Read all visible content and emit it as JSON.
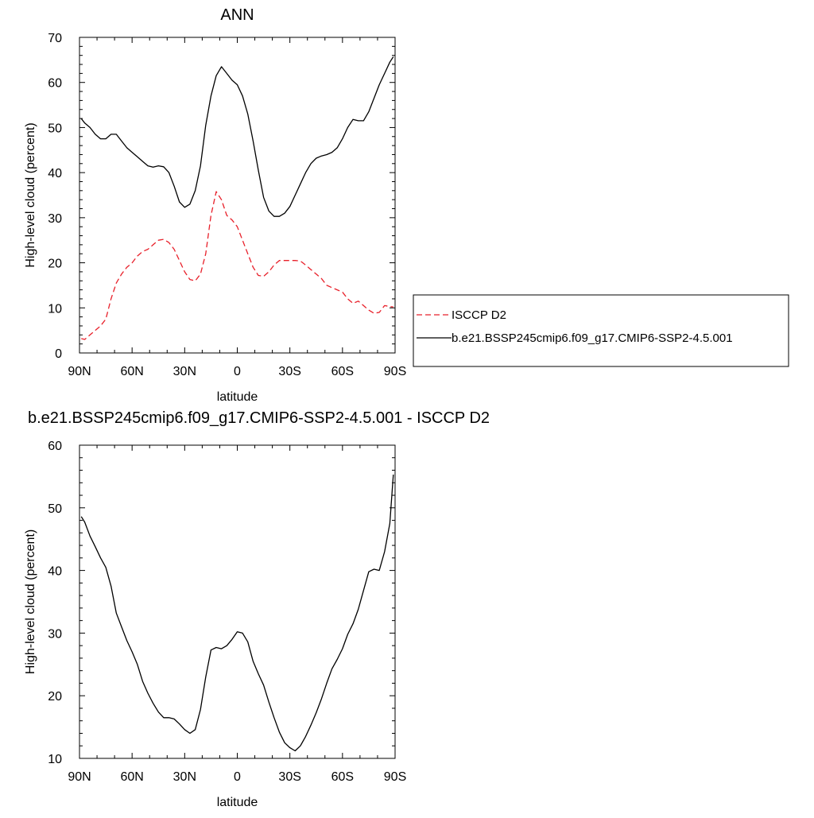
{
  "chart_data": [
    {
      "type": "line",
      "title": "ANN",
      "xlabel": "latitude",
      "ylabel": "High-level cloud (percent)",
      "xlim": [
        90,
        -90
      ],
      "ylim": [
        0,
        70
      ],
      "xticks": [
        90,
        60,
        30,
        0,
        -30,
        -60,
        -90
      ],
      "xtick_labels": [
        "90N",
        "60N",
        "30N",
        "0",
        "30S",
        "60S",
        "90S"
      ],
      "yticks": [
        0,
        10,
        20,
        30,
        40,
        50,
        60,
        70
      ],
      "ytick_labels": [
        "0",
        "10",
        "20",
        "30",
        "40",
        "50",
        "60",
        "70"
      ],
      "grid": false,
      "legend_position": "right",
      "series": [
        {
          "name": "ISCCP D2",
          "color": "#e8202a",
          "dash": "dashed",
          "x": [
            89,
            87,
            84,
            81,
            78,
            75,
            72,
            69,
            66,
            63,
            60,
            57,
            54,
            51,
            48,
            45,
            42,
            39,
            36,
            33,
            30,
            27,
            24,
            21,
            18,
            15,
            12,
            9,
            6,
            3,
            0,
            -3,
            -6,
            -9,
            -12,
            -15,
            -18,
            -21,
            -24,
            -27,
            -30,
            -33,
            -36,
            -39,
            -42,
            -45,
            -48,
            -51,
            -54,
            -57,
            -60,
            -63,
            -66,
            -69,
            -72,
            -75,
            -78,
            -81,
            -84,
            -87,
            -89
          ],
          "y": [
            3.2,
            3.0,
            4.0,
            5.0,
            6.0,
            7.5,
            12.0,
            15.5,
            17.5,
            19.0,
            20.0,
            21.5,
            22.5,
            23.0,
            24.0,
            25.0,
            25.2,
            24.5,
            23.0,
            20.5,
            18.0,
            16.3,
            16.0,
            17.5,
            22.0,
            30.5,
            35.8,
            34.0,
            30.5,
            29.5,
            28.0,
            25.0,
            22.0,
            19.0,
            17.2,
            17.0,
            18.0,
            19.5,
            20.5,
            20.5,
            20.5,
            20.5,
            20.4,
            19.5,
            18.5,
            17.5,
            16.5,
            15.0,
            14.5,
            14.0,
            13.5,
            12.0,
            11.0,
            11.5,
            10.5,
            9.5,
            8.8,
            9.0,
            10.5,
            10.3,
            10.2
          ]
        },
        {
          "name": "b.e21.BSSP245cmip6.f09_g17.CMIP6-SSP2-4.5.001",
          "color": "#000000",
          "dash": "solid",
          "x": [
            89,
            87,
            84,
            81,
            78,
            75,
            72,
            69,
            66,
            63,
            60,
            57,
            54,
            51,
            48,
            45,
            42,
            39,
            36,
            33,
            30,
            27,
            24,
            21,
            18,
            15,
            12,
            9,
            6,
            3,
            0,
            -3,
            -6,
            -9,
            -12,
            -15,
            -18,
            -21,
            -24,
            -27,
            -30,
            -33,
            -36,
            -39,
            -42,
            -45,
            -48,
            -51,
            -54,
            -57,
            -60,
            -63,
            -66,
            -69,
            -72,
            -75,
            -78,
            -81,
            -84,
            -87,
            -89
          ],
          "y": [
            52.0,
            51.0,
            50.0,
            48.5,
            47.5,
            47.5,
            48.5,
            48.5,
            47.0,
            45.5,
            44.5,
            43.5,
            42.5,
            41.5,
            41.2,
            41.5,
            41.3,
            40.0,
            37.0,
            33.5,
            32.3,
            33.0,
            36.0,
            41.5,
            50.5,
            57.0,
            61.5,
            63.5,
            62.0,
            60.5,
            59.5,
            57.0,
            53.0,
            47.0,
            40.5,
            34.5,
            31.5,
            30.3,
            30.3,
            31.0,
            32.5,
            35.0,
            37.5,
            40.0,
            42.0,
            43.2,
            43.7,
            44.0,
            44.5,
            45.5,
            47.5,
            50.0,
            51.8,
            51.5,
            51.5,
            53.5,
            56.5,
            59.5,
            62.0,
            64.5,
            65.7
          ]
        }
      ]
    },
    {
      "type": "line",
      "title": "b.e21.BSSP245cmip6.f09_g17.CMIP6-SSP2-4.5.001 - ISCCP D2",
      "xlabel": "latitude",
      "ylabel": "High-level cloud (percent)",
      "xlim": [
        90,
        -90
      ],
      "ylim": [
        10,
        60
      ],
      "xticks": [
        90,
        60,
        30,
        0,
        -30,
        -60,
        -90
      ],
      "xtick_labels": [
        "90N",
        "60N",
        "30N",
        "0",
        "30S",
        "60S",
        "90S"
      ],
      "yticks": [
        10,
        20,
        30,
        40,
        50,
        60
      ],
      "ytick_labels": [
        "10",
        "20",
        "30",
        "40",
        "50",
        "60"
      ],
      "grid": false,
      "series": [
        {
          "color": "#000000",
          "dash": "solid",
          "x": [
            89,
            87,
            84,
            81,
            78,
            75,
            72,
            69,
            66,
            63,
            60,
            57,
            54,
            51,
            48,
            45,
            42,
            39,
            36,
            33,
            30,
            27,
            24,
            21,
            18,
            15,
            12,
            9,
            6,
            3,
            0,
            -3,
            -6,
            -9,
            -12,
            -15,
            -18,
            -21,
            -24,
            -27,
            -30,
            -33,
            -36,
            -39,
            -42,
            -45,
            -48,
            -51,
            -54,
            -57,
            -60,
            -63,
            -66,
            -69,
            -72,
            -75,
            -78,
            -81,
            -84,
            -87,
            -89
          ],
          "y": [
            48.6,
            47.7,
            45.5,
            43.8,
            42.0,
            40.5,
            37.5,
            33.2,
            31.0,
            28.8,
            27.0,
            25.0,
            22.3,
            20.4,
            18.8,
            17.4,
            16.5,
            16.5,
            16.3,
            15.5,
            14.6,
            14.0,
            14.6,
            17.8,
            23.0,
            27.3,
            27.7,
            27.5,
            28.0,
            29.0,
            30.2,
            30.0,
            28.6,
            25.5,
            23.5,
            21.7,
            19.0,
            16.5,
            14.2,
            12.5,
            11.7,
            11.2,
            12.0,
            13.5,
            15.3,
            17.3,
            19.5,
            22.0,
            24.3,
            25.8,
            27.5,
            29.8,
            31.5,
            33.8,
            36.8,
            39.8,
            40.2,
            40.0,
            43.0,
            47.5,
            55.3
          ]
        }
      ]
    }
  ]
}
